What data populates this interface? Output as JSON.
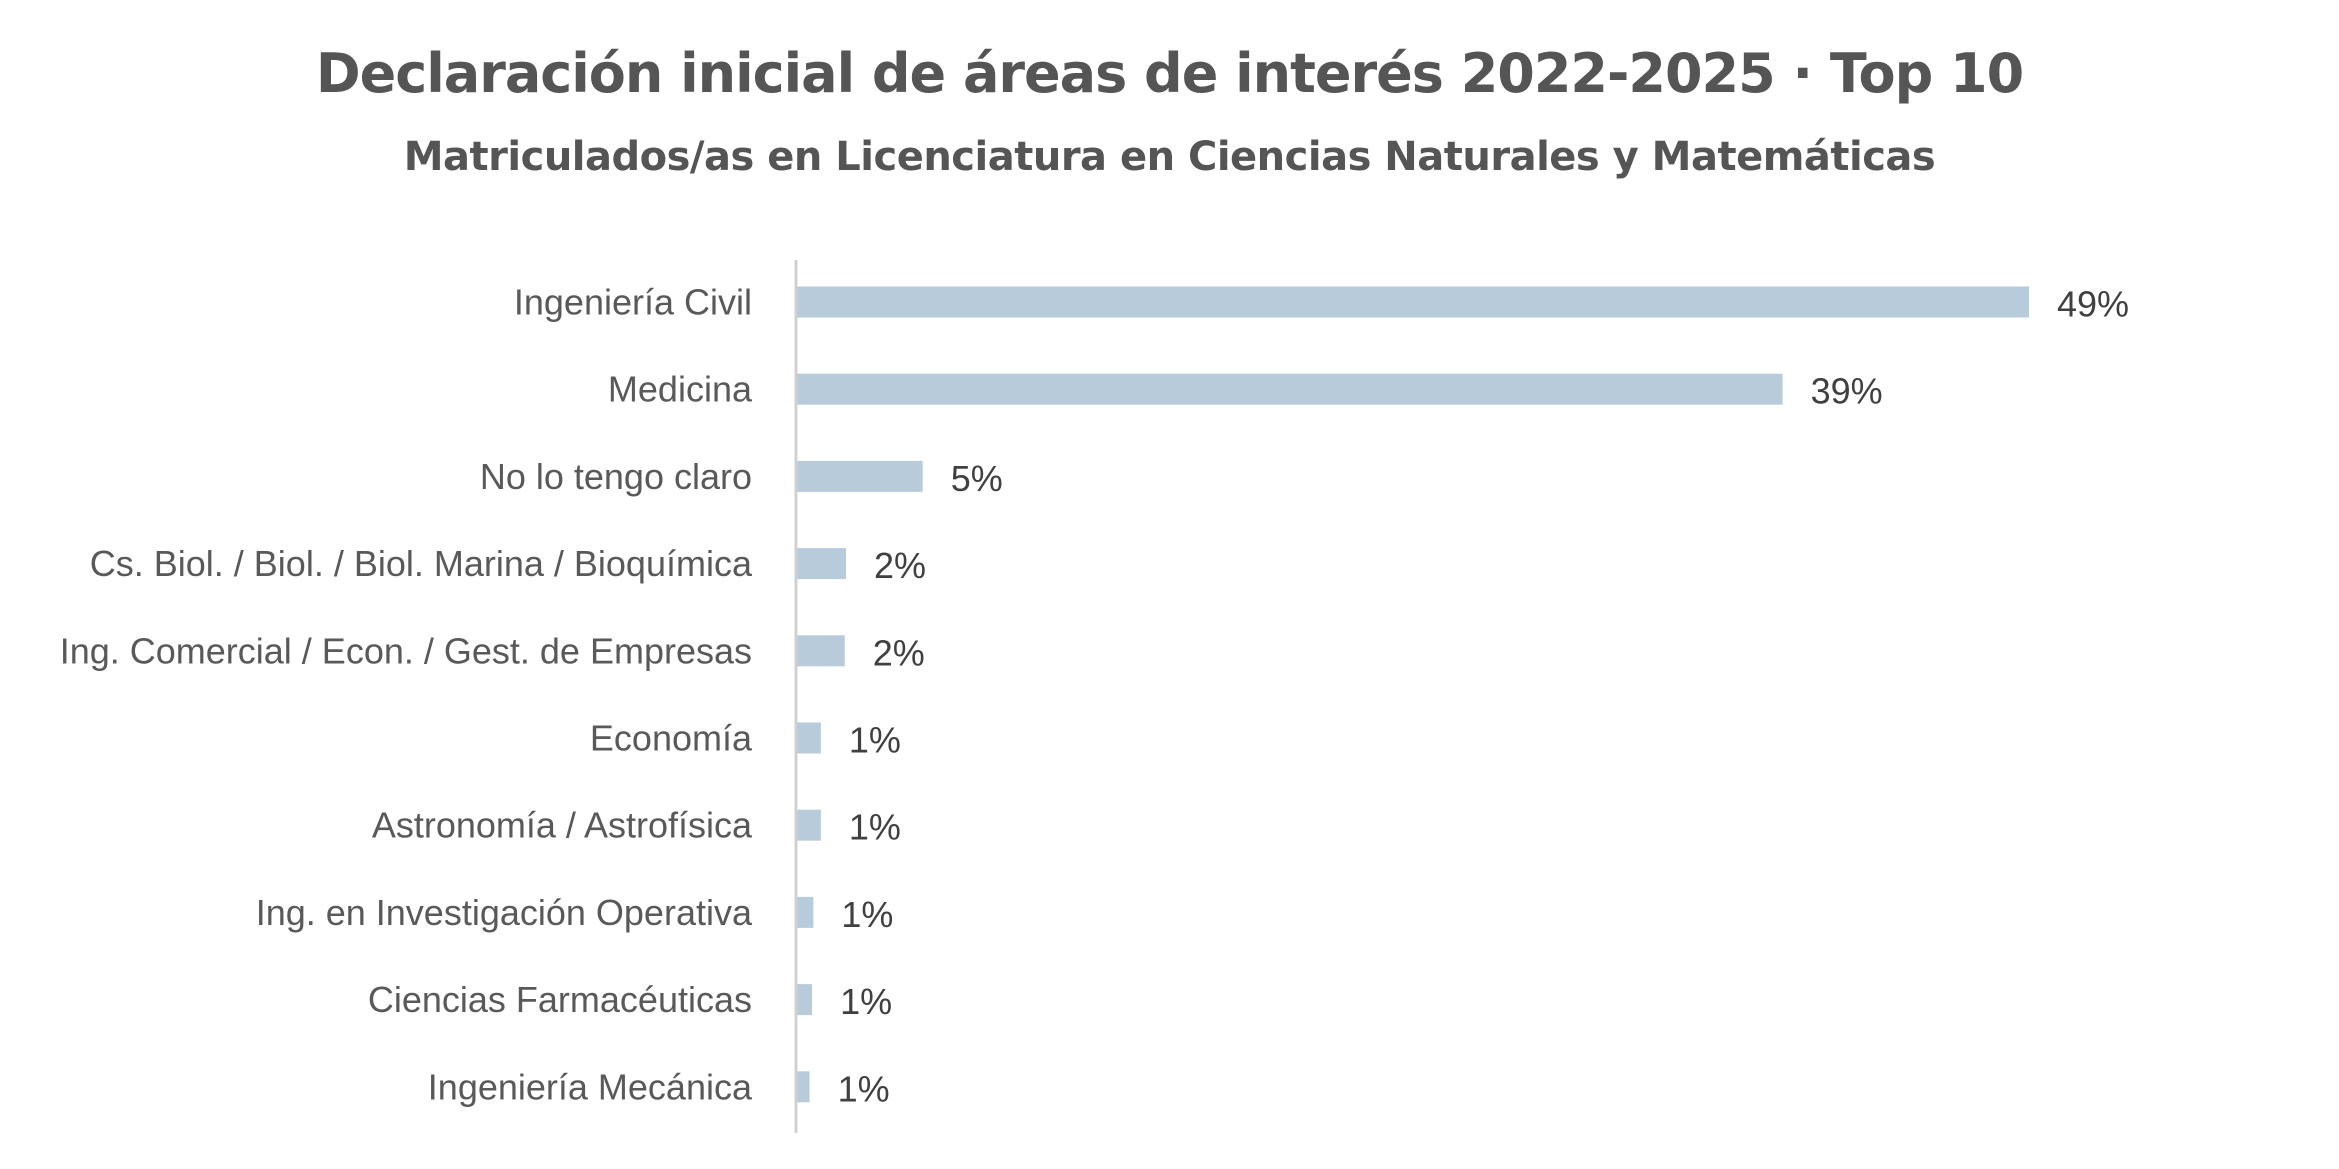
{
  "chart_data": {
    "type": "bar",
    "orientation": "horizontal",
    "title": "Declaración inicial de áreas de interés 2022-2025 · Top 10",
    "subtitle": "Matriculados/as en Licenciatura en Ciencias Naturales y Matemáticas",
    "categories": [
      "Ingeniería Civil",
      "Medicina",
      "No lo tengo claro",
      "Cs. Biol. / Biol. / Biol. Marina / Bioquímica",
      "Ing. Comercial / Econ. / Gest. de Empresas",
      "Economía",
      "Astronomía / Astrofísica",
      "Ing. en Investigación Operativa",
      "Ciencias Farmacéuticas",
      "Ingeniería Mecánica"
    ],
    "values": [
      49.0,
      39.2,
      5.0,
      1.95,
      1.9,
      0.95,
      0.95,
      0.65,
      0.6,
      0.5
    ],
    "value_labels": [
      "49%",
      "39%",
      "5%",
      "2%",
      "2%",
      "1%",
      "1%",
      "1%",
      "1%",
      "1%"
    ],
    "xlim": [
      0,
      52
    ],
    "grid": false,
    "legend": "none",
    "bar_color": "#b8cbdb",
    "axis_color": "#d0d0d0"
  }
}
